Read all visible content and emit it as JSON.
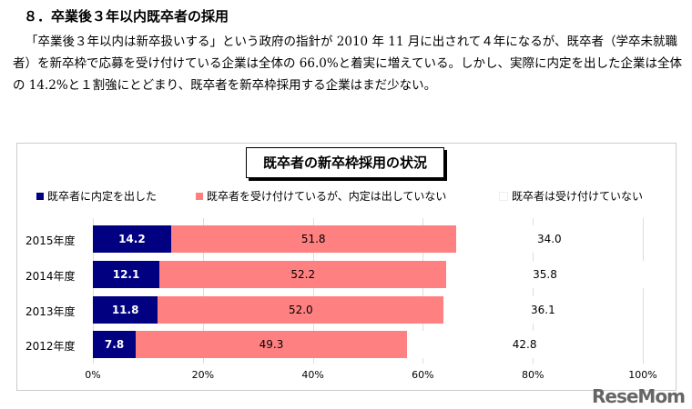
{
  "heading": "８．卒業後３年以内既卒者の採用",
  "paragraph": "「卒業後３年以内は新卒扱いする」という政府の指針が 2010 年 11 月に出されて４年になるが、既卒者（学卒未就職者）を新卒枠で応募を受け付けている企業は全体の 66.0%と着実に増えている。しかし、実際に内定を出した企業は全体の 14.2%と１割強にとどまり、既卒者を新卒枠採用する企業はまだ少ない。",
  "chart_data": {
    "type": "bar",
    "orientation": "horizontal",
    "stacked": true,
    "title": "既卒者の新卒枠採用の状況",
    "categories": [
      "2015年度",
      "2014年度",
      "2013年度",
      "2012年度"
    ],
    "series": [
      {
        "name": "既卒者に内定を出した",
        "color": "#000080",
        "values": [
          14.2,
          12.1,
          11.8,
          7.8
        ]
      },
      {
        "name": "既卒者を受け付けているが、内定は出していない",
        "color": "#ff8080",
        "values": [
          51.8,
          52.2,
          52.0,
          49.3
        ]
      },
      {
        "name": "既卒者は受け付けていない",
        "color": "#ffffff",
        "values": [
          34.0,
          35.8,
          36.1,
          42.8
        ]
      }
    ],
    "xlim": [
      0,
      100
    ],
    "xticks": [
      "0%",
      "20%",
      "40%",
      "60%",
      "80%",
      "100%"
    ],
    "legend": "top"
  },
  "watermark": "ReseMom"
}
